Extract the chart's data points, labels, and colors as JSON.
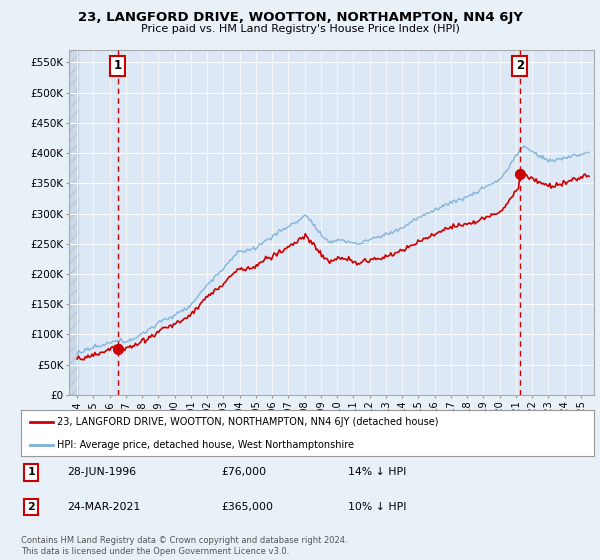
{
  "title": "23, LANGFORD DRIVE, WOOTTON, NORTHAMPTON, NN4 6JY",
  "subtitle": "Price paid vs. HM Land Registry's House Price Index (HPI)",
  "legend_label_red": "23, LANGFORD DRIVE, WOOTTON, NORTHAMPTON, NN4 6JY (detached house)",
  "legend_label_blue": "HPI: Average price, detached house, West Northamptonshire",
  "annotation1_date": "28-JUN-1996",
  "annotation1_price": "£76,000",
  "annotation1_hpi": "14% ↓ HPI",
  "annotation2_date": "24-MAR-2021",
  "annotation2_price": "£365,000",
  "annotation2_hpi": "10% ↓ HPI",
  "copyright": "Contains HM Land Registry data © Crown copyright and database right 2024.\nThis data is licensed under the Open Government Licence v3.0.",
  "sale1_x": 1996.49,
  "sale1_y": 76000,
  "sale2_x": 2021.23,
  "sale2_y": 365000,
  "xlim": [
    1993.5,
    2025.8
  ],
  "ylim": [
    0,
    570000
  ],
  "yticks": [
    0,
    50000,
    100000,
    150000,
    200000,
    250000,
    300000,
    350000,
    400000,
    450000,
    500000,
    550000
  ],
  "ytick_labels": [
    "£0",
    "£50K",
    "£100K",
    "£150K",
    "£200K",
    "£250K",
    "£300K",
    "£350K",
    "£400K",
    "£450K",
    "£500K",
    "£550K"
  ],
  "background_color": "#e8f0f8",
  "plot_bg_color": "#dce8f5",
  "grid_color": "#ffffff",
  "red_line_color": "#cc0000",
  "blue_line_color": "#7ab0d8",
  "dashed_line_color": "#cc0000",
  "marker_color": "#cc0000",
  "sale_marker_size": 7
}
